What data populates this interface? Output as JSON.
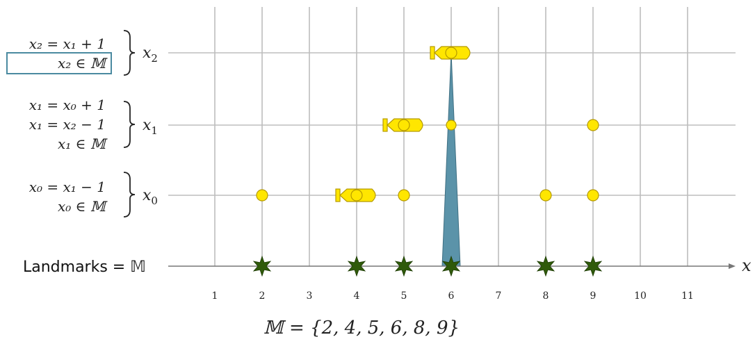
{
  "rows": [
    {
      "label_base": "x",
      "label_sub": "2",
      "equations": [
        "x₂ = x₁ + 1",
        "x₂ ∈ 𝕄"
      ],
      "boxed_equation_index": 1,
      "bomb_at": 6,
      "circles": [
        6
      ]
    },
    {
      "label_base": "x",
      "label_sub": "1",
      "equations": [
        "x₁ = x₀ + 1",
        "x₁ = x₂ − 1",
        "x₁ ∈ 𝕄"
      ],
      "bomb_at": 5,
      "circles": [
        5,
        6,
        9
      ]
    },
    {
      "label_base": "x",
      "label_sub": "0",
      "equations": [
        "x₀ = x₁ − 1",
        "x₀ ∈ 𝕄"
      ],
      "bomb_at": 4,
      "circles": [
        2,
        4,
        5,
        8,
        9
      ]
    }
  ],
  "axis": {
    "label": "x",
    "ticks": [
      "1",
      "2",
      "3",
      "4",
      "5",
      "6",
      "7",
      "8",
      "9",
      "10",
      "11"
    ],
    "landmarks_label": "Landmarks = 𝕄",
    "landmarks": [
      2,
      4,
      5,
      6,
      8,
      9
    ]
  },
  "set_definition": "𝕄 = {2, 4, 5, 6, 8, 9}",
  "spike_at": 6,
  "colors": {
    "grid": "#bdbdbd",
    "circle_fill": "#ffe600",
    "circle_stroke": "#b59a00",
    "star": "#2f5a0a",
    "spike": "#5b93a9",
    "box": "#4a8aa0",
    "axis": "#777777"
  }
}
